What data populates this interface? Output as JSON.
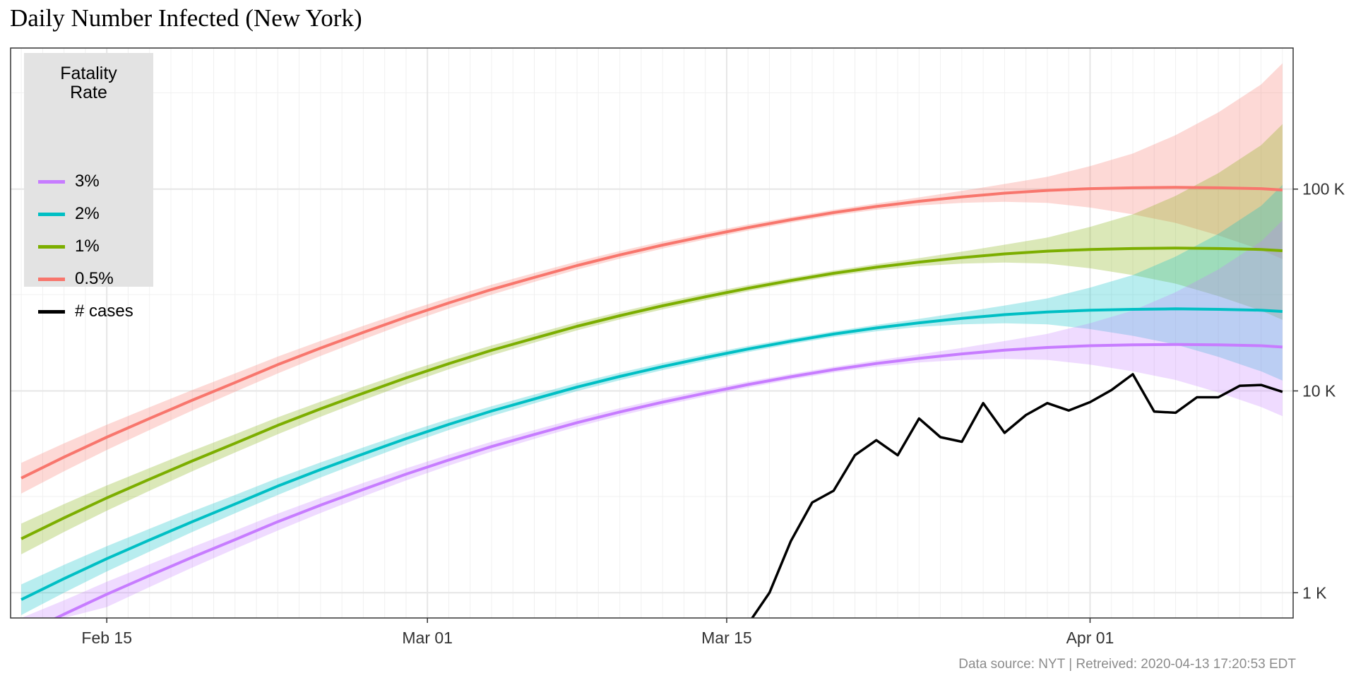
{
  "chart_data": {
    "type": "line",
    "title": "Daily Number Infected (New York)",
    "caption": "Data source: NYT  |  Retreived: 2020-04-13 17:20:53 EDT",
    "y_scale": "log10",
    "ylim": [
      750,
      500000
    ],
    "x_dates": [
      "Feb 11",
      "Apr 13"
    ],
    "x_ticks": [
      {
        "day": 4,
        "label": "Feb 15"
      },
      {
        "day": 19,
        "label": "Mar 01"
      },
      {
        "day": 33,
        "label": "Mar 15"
      },
      {
        "day": 50,
        "label": "Apr 01"
      }
    ],
    "y_ticks": [
      {
        "value": 1000,
        "label": "1 K"
      },
      {
        "value": 10000,
        "label": "10 K"
      },
      {
        "value": 100000,
        "label": "100 K"
      }
    ],
    "legend": {
      "title": [
        "Fatality",
        "Rate"
      ],
      "position": "top-left",
      "items": [
        {
          "label": "3%",
          "color": "#C77CFF"
        },
        {
          "label": "2%",
          "color": "#00BFC4"
        },
        {
          "label": "1%",
          "color": "#7CAE00"
        },
        {
          "label": "0.5%",
          "color": "#F8766D"
        },
        {
          "label": "# cases",
          "color": "#000000"
        }
      ]
    },
    "series": [
      {
        "name": "0.5%",
        "color": "#F8766D",
        "x": [
          0,
          2,
          4,
          6,
          8,
          10,
          12,
          14,
          16,
          18,
          20,
          22,
          24,
          26,
          28,
          30,
          32,
          34,
          36,
          38,
          40,
          42,
          44,
          46,
          48,
          50,
          52,
          54,
          56,
          58,
          59
        ],
        "y": [
          3700,
          4700,
          5900,
          7300,
          9000,
          11000,
          13500,
          16300,
          19500,
          23200,
          27300,
          31800,
          36500,
          41800,
          47200,
          52800,
          58500,
          64500,
          70500,
          76500,
          82000,
          87000,
          91500,
          95500,
          98500,
          100500,
          101500,
          102000,
          101500,
          100500,
          99000
        ],
        "upper": [
          4400,
          5500,
          6800,
          8300,
          10100,
          12200,
          14800,
          17700,
          21000,
          24800,
          29000,
          33600,
          38400,
          43800,
          49300,
          55000,
          60800,
          66800,
          72800,
          79000,
          85000,
          91000,
          98000,
          106000,
          115000,
          130000,
          150000,
          185000,
          240000,
          330000,
          420000
        ],
        "lower": [
          3100,
          4000,
          5100,
          6400,
          8000,
          9900,
          12200,
          14900,
          18000,
          21600,
          25600,
          30000,
          34700,
          39900,
          45200,
          50700,
          56300,
          62300,
          68200,
          74000,
          79000,
          83000,
          85500,
          86500,
          85500,
          81000,
          75000,
          68000,
          59000,
          50000,
          45000
        ]
      },
      {
        "name": "1%",
        "color": "#7CAE00",
        "x": [
          0,
          2,
          4,
          6,
          8,
          10,
          12,
          14,
          16,
          18,
          20,
          22,
          24,
          26,
          28,
          30,
          32,
          34,
          36,
          38,
          40,
          42,
          44,
          46,
          48,
          50,
          52,
          54,
          56,
          58,
          59
        ],
        "y": [
          1850,
          2350,
          2950,
          3650,
          4500,
          5500,
          6750,
          8150,
          9750,
          11600,
          13650,
          15900,
          18250,
          20900,
          23600,
          26400,
          29250,
          32250,
          35250,
          38250,
          41000,
          43500,
          45750,
          47750,
          49250,
          50250,
          50750,
          51000,
          50750,
          50250,
          49500
        ],
        "upper": [
          2200,
          2750,
          3400,
          4150,
          5050,
          6100,
          7400,
          8850,
          10500,
          12400,
          14500,
          16800,
          19200,
          21900,
          24650,
          27500,
          30400,
          33400,
          36400,
          39500,
          42500,
          45500,
          49000,
          53000,
          57500,
          65000,
          75000,
          92500,
          120000,
          165000,
          210000
        ],
        "lower": [
          1550,
          2000,
          2550,
          3200,
          4000,
          4950,
          6100,
          7450,
          9000,
          10800,
          12800,
          15000,
          17350,
          19950,
          22600,
          25350,
          28150,
          31150,
          34100,
          37000,
          39500,
          41500,
          42750,
          43250,
          42750,
          40500,
          37500,
          34000,
          29500,
          25000,
          22500
        ]
      },
      {
        "name": "2%",
        "color": "#00BFC4",
        "x": [
          0,
          2,
          4,
          6,
          8,
          10,
          12,
          14,
          16,
          18,
          20,
          22,
          24,
          26,
          28,
          30,
          32,
          34,
          36,
          38,
          40,
          42,
          44,
          46,
          48,
          50,
          52,
          54,
          56,
          58,
          59
        ],
        "y": [
          925,
          1175,
          1475,
          1825,
          2250,
          2750,
          3375,
          4075,
          4875,
          5800,
          6825,
          7950,
          9125,
          10450,
          11800,
          13200,
          14625,
          16125,
          17625,
          19125,
          20500,
          21750,
          22875,
          23875,
          24625,
          25125,
          25375,
          25500,
          25375,
          25125,
          24750
        ],
        "upper": [
          1100,
          1375,
          1700,
          2075,
          2525,
          3050,
          3700,
          4425,
          5250,
          6200,
          7250,
          8400,
          9600,
          10950,
          12325,
          13750,
          15200,
          16700,
          18200,
          19750,
          21250,
          22750,
          24500,
          26500,
          28750,
          32500,
          37500,
          46250,
          60000,
          82500,
          105000
        ],
        "lower": [
          775,
          1000,
          1275,
          1600,
          2000,
          2475,
          3050,
          3725,
          4500,
          5400,
          6400,
          7500,
          8675,
          9975,
          11300,
          12675,
          14075,
          15575,
          17050,
          18500,
          19750,
          20750,
          21375,
          21625,
          21375,
          20250,
          18750,
          17000,
          14750,
          12500,
          11250
        ]
      },
      {
        "name": "3%",
        "color": "#C77CFF",
        "x": [
          0,
          2,
          4,
          6,
          8,
          10,
          12,
          14,
          16,
          18,
          20,
          22,
          24,
          26,
          28,
          30,
          32,
          34,
          36,
          38,
          40,
          42,
          44,
          46,
          48,
          50,
          52,
          54,
          56,
          58,
          59
        ],
        "y": [
          617,
          783,
          983,
          1217,
          1500,
          1833,
          2250,
          2717,
          3250,
          3867,
          4550,
          5300,
          6083,
          6967,
          7867,
          8800,
          9750,
          10750,
          11750,
          12750,
          13667,
          14500,
          15250,
          15917,
          16417,
          16750,
          16917,
          17000,
          16917,
          16750,
          16500
        ],
        "upper": [
          733,
          917,
          1133,
          1383,
          1683,
          2033,
          2467,
          2950,
          3500,
          4133,
          4833,
          5600,
          6400,
          7300,
          8217,
          9167,
          10133,
          11133,
          12133,
          13167,
          14167,
          15167,
          16333,
          17667,
          19167,
          21667,
          25000,
          30833,
          40000,
          55000,
          70000
        ],
        "lower": [
          517,
          667,
          850,
          1067,
          1333,
          1650,
          2033,
          2483,
          3000,
          3600,
          4267,
          5000,
          5783,
          6650,
          7533,
          8450,
          9383,
          10383,
          11367,
          12333,
          13167,
          13833,
          14250,
          14417,
          14250,
          13500,
          12500,
          11333,
          9833,
          8333,
          7500
        ]
      },
      {
        "name": "# cases",
        "color": "#000000",
        "x": [
          34,
          35,
          36,
          37,
          38,
          39,
          40,
          41,
          42,
          43,
          44,
          45,
          46,
          47,
          48,
          49,
          50,
          51,
          52,
          53,
          54,
          55,
          56,
          57,
          58,
          59
        ],
        "y": [
          700,
          1000,
          1800,
          2800,
          3200,
          4800,
          5700,
          4800,
          7300,
          5900,
          5600,
          8700,
          6200,
          7600,
          8700,
          8000,
          8800,
          10100,
          12100,
          7900,
          7800,
          9300,
          9300,
          10600,
          10700,
          9900
        ]
      }
    ]
  }
}
